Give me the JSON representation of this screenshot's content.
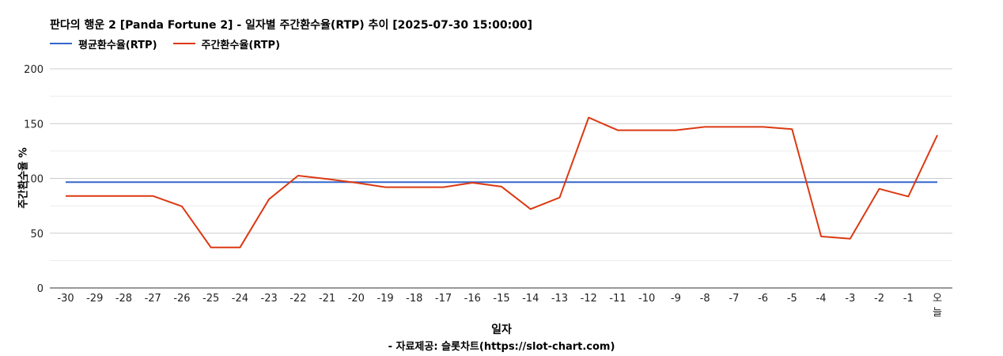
{
  "chart_data": {
    "type": "line",
    "title": "판다의 행운 2 [Panda Fortune 2] - 일자별 주간환수율(RTP) 추이 [2025-07-30 15:00:00]",
    "xlabel": "일자",
    "ylabel": "주간환수율 %",
    "footnote": "- 자료제공: 슬롯차트(https://slot-chart.com)",
    "categories": [
      "-30",
      "-29",
      "-28",
      "-27",
      "-26",
      "-25",
      "-24",
      "-23",
      "-22",
      "-21",
      "-20",
      "-19",
      "-18",
      "-17",
      "-16",
      "-15",
      "-14",
      "-13",
      "-12",
      "-11",
      "-10",
      "-9",
      "-8",
      "-7",
      "-6",
      "-5",
      "-4",
      "-3",
      "-2",
      "-1",
      "오늘"
    ],
    "ylim": [
      0,
      200
    ],
    "yticks": [
      0,
      50,
      100,
      150,
      200
    ],
    "grid": true,
    "legend_position": "top-left",
    "series": [
      {
        "name": "평균환수율(RTP)",
        "color": "#3366cc",
        "values": [
          96.5,
          96.5,
          96.5,
          96.5,
          96.5,
          96.5,
          96.5,
          96.5,
          96.5,
          96.5,
          96.5,
          96.5,
          96.5,
          96.5,
          96.5,
          96.5,
          96.5,
          96.5,
          96.5,
          96.5,
          96.5,
          96.5,
          96.5,
          96.5,
          96.5,
          96.5,
          96.5,
          96.5,
          96.5,
          96.5,
          96.5
        ]
      },
      {
        "name": "주간환수율(RTP)",
        "color": "#dc3912",
        "values": [
          84,
          84,
          84,
          84,
          74.5,
          37,
          37,
          81,
          102.5,
          99.5,
          96,
          92,
          92,
          92,
          96,
          92.5,
          72,
          82.5,
          155.5,
          144,
          144,
          144,
          147,
          147,
          147,
          145,
          47,
          45,
          90.5,
          83.5,
          139.5
        ]
      }
    ]
  }
}
